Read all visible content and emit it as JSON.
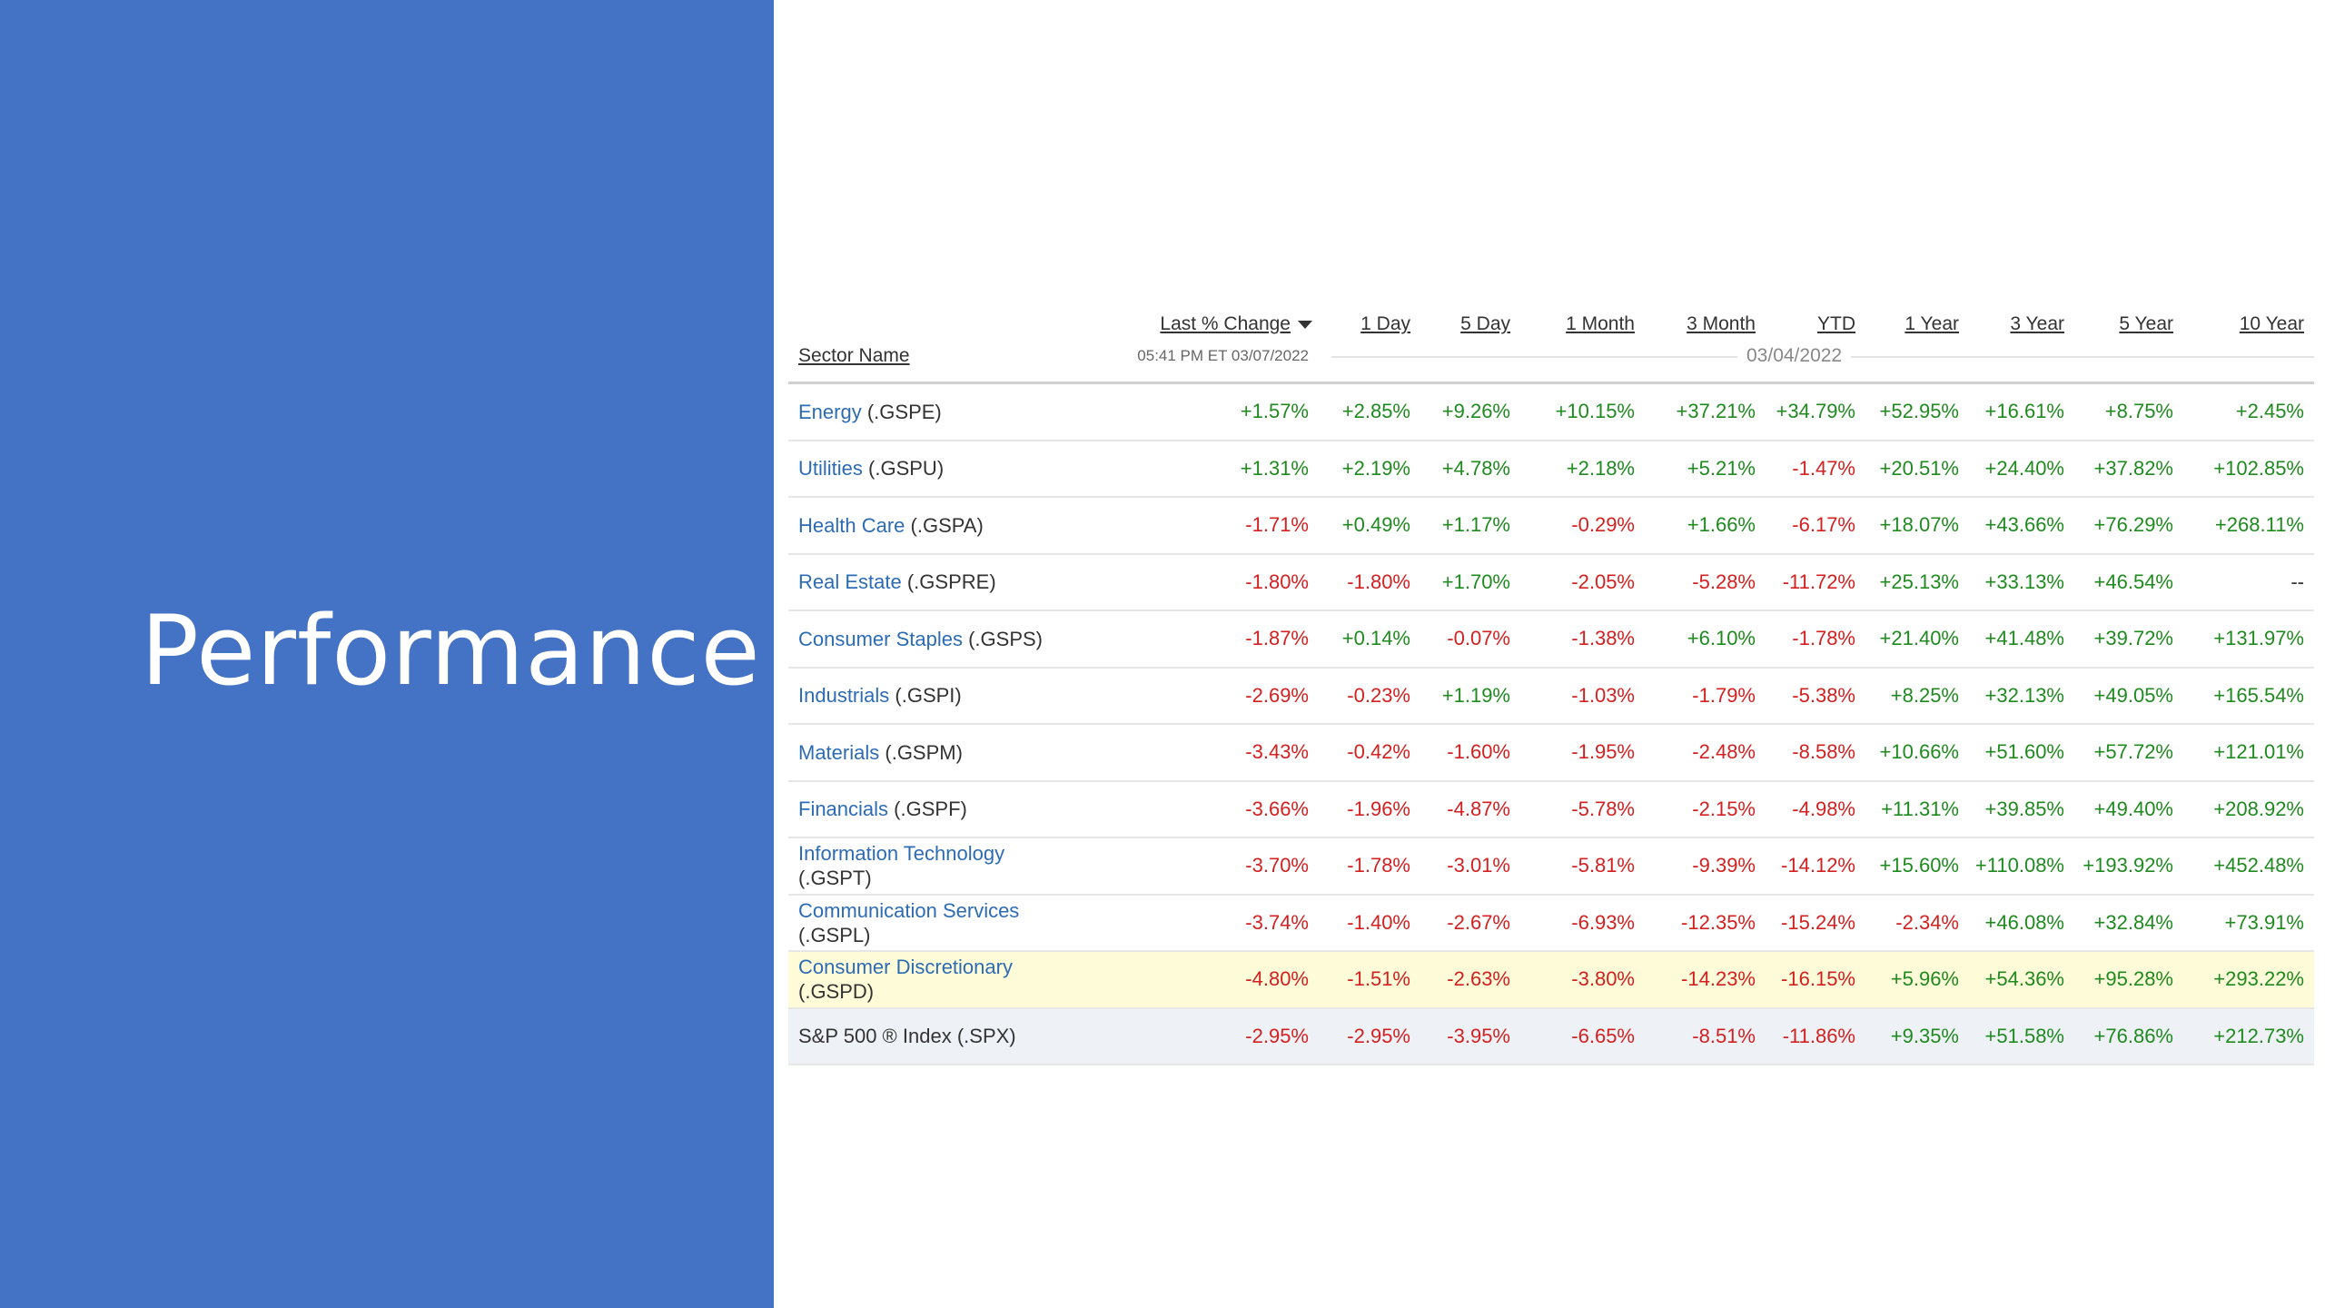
{
  "slide": {
    "title": "Performance",
    "panel_color": "#4472c4"
  },
  "table": {
    "columns": [
      "Last % Change",
      "1 Day",
      "5 Day",
      "1 Month",
      "3 Month",
      "YTD",
      "1 Year",
      "3 Year",
      "5 Year",
      "10 Year"
    ],
    "sector_header": "Sector Name",
    "timestamp": "05:41 PM ET 03/07/2022",
    "reference_date": "03/04/2022",
    "colors": {
      "positive": "#1f8a1f",
      "negative": "#d32020",
      "link": "#2d6cb5",
      "highlight": "#fefbd8"
    },
    "rows": [
      {
        "name": "Energy",
        "ticker": "(.GSPE)",
        "values": [
          "+1.57%",
          "+2.85%",
          "+9.26%",
          "+10.15%",
          "+37.21%",
          "+34.79%",
          "+52.95%",
          "+16.61%",
          "+8.75%",
          "+2.45%"
        ]
      },
      {
        "name": "Utilities",
        "ticker": "(.GSPU)",
        "values": [
          "+1.31%",
          "+2.19%",
          "+4.78%",
          "+2.18%",
          "+5.21%",
          "-1.47%",
          "+20.51%",
          "+24.40%",
          "+37.82%",
          "+102.85%"
        ]
      },
      {
        "name": "Health Care",
        "ticker": "(.GSPA)",
        "values": [
          "-1.71%",
          "+0.49%",
          "+1.17%",
          "-0.29%",
          "+1.66%",
          "-6.17%",
          "+18.07%",
          "+43.66%",
          "+76.29%",
          "+268.11%"
        ]
      },
      {
        "name": "Real Estate",
        "ticker": "(.GSPRE)",
        "values": [
          "-1.80%",
          "-1.80%",
          "+1.70%",
          "-2.05%",
          "-5.28%",
          "-11.72%",
          "+25.13%",
          "+33.13%",
          "+46.54%",
          "--"
        ]
      },
      {
        "name": "Consumer Staples",
        "ticker": "(.GSPS)",
        "values": [
          "-1.87%",
          "+0.14%",
          "-0.07%",
          "-1.38%",
          "+6.10%",
          "-1.78%",
          "+21.40%",
          "+41.48%",
          "+39.72%",
          "+131.97%"
        ]
      },
      {
        "name": "Industrials",
        "ticker": "(.GSPI)",
        "values": [
          "-2.69%",
          "-0.23%",
          "+1.19%",
          "-1.03%",
          "-1.79%",
          "-5.38%",
          "+8.25%",
          "+32.13%",
          "+49.05%",
          "+165.54%"
        ]
      },
      {
        "name": "Materials",
        "ticker": "(.GSPM)",
        "values": [
          "-3.43%",
          "-0.42%",
          "-1.60%",
          "-1.95%",
          "-2.48%",
          "-8.58%",
          "+10.66%",
          "+51.60%",
          "+57.72%",
          "+121.01%"
        ]
      },
      {
        "name": "Financials",
        "ticker": "(.GSPF)",
        "values": [
          "-3.66%",
          "-1.96%",
          "-4.87%",
          "-5.78%",
          "-2.15%",
          "-4.98%",
          "+11.31%",
          "+39.85%",
          "+49.40%",
          "+208.92%"
        ]
      },
      {
        "name": "Information Technology",
        "ticker": "(.GSPT)",
        "values": [
          "-3.70%",
          "-1.78%",
          "-3.01%",
          "-5.81%",
          "-9.39%",
          "-14.12%",
          "+15.60%",
          "+110.08%",
          "+193.92%",
          "+452.48%"
        ]
      },
      {
        "name": "Communication Services",
        "ticker": "(.GSPL)",
        "values": [
          "-3.74%",
          "-1.40%",
          "-2.67%",
          "-6.93%",
          "-12.35%",
          "-15.24%",
          "-2.34%",
          "+46.08%",
          "+32.84%",
          "+73.91%"
        ]
      },
      {
        "name": "Consumer Discretionary",
        "ticker": "(.GSPD)",
        "values": [
          "-4.80%",
          "-1.51%",
          "-2.63%",
          "-3.80%",
          "-14.23%",
          "-16.15%",
          "+5.96%",
          "+54.36%",
          "+95.28%",
          "+293.22%"
        ]
      },
      {
        "name": "S&P 500 ® Index",
        "ticker": "(.SPX)",
        "values": [
          "-2.95%",
          "-2.95%",
          "-3.95%",
          "-6.65%",
          "-8.51%",
          "-11.86%",
          "+9.35%",
          "+51.58%",
          "+76.86%",
          "+212.73%"
        ]
      }
    ]
  }
}
